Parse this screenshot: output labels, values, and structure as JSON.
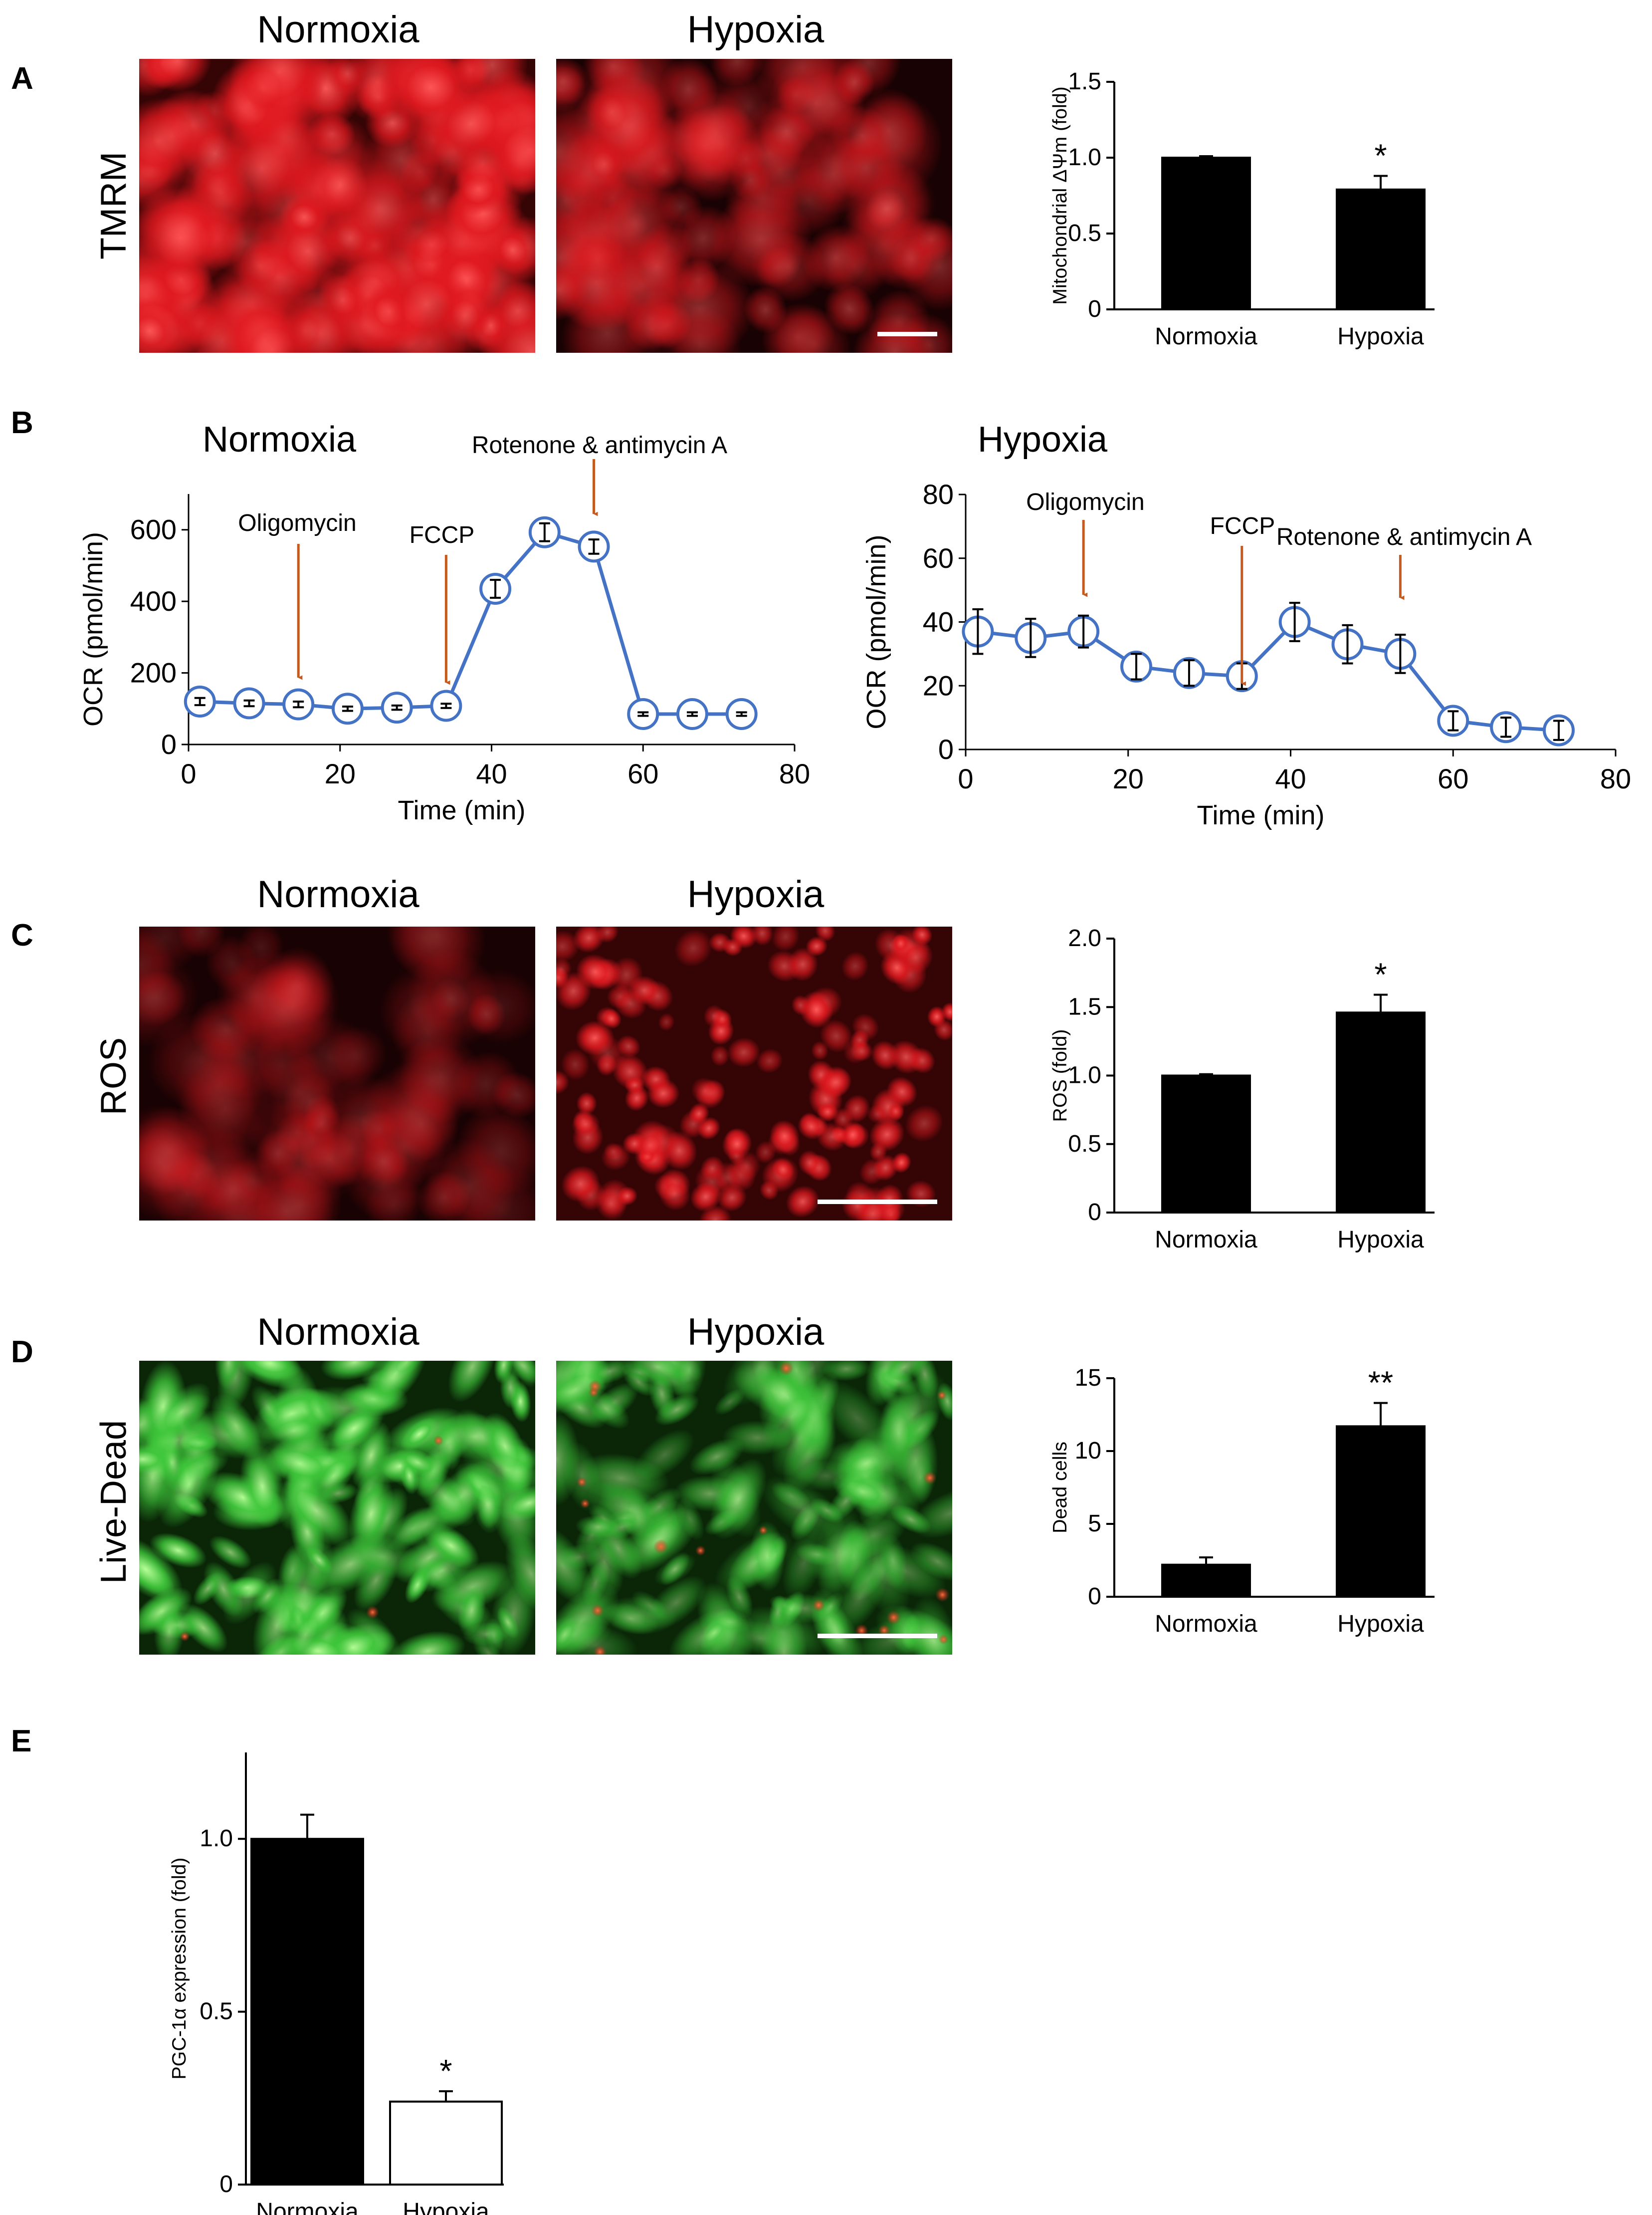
{
  "panels": {
    "A": {
      "label": "A",
      "row_label": "TMRM",
      "col_left": "Normoxia",
      "col_right": "Hypoxia"
    },
    "B": {
      "label": "B"
    },
    "C": {
      "label": "C",
      "row_label": "ROS",
      "col_left": "Normoxia",
      "col_right": "Hypoxia"
    },
    "D": {
      "label": "D",
      "row_label": "Live-Dead",
      "col_left": "Normoxia",
      "col_right": "Hypoxia"
    },
    "E": {
      "label": "E"
    }
  },
  "micrographs": {
    "A_normoxia": {
      "stain": "red",
      "intensity": 0.85
    },
    "A_hypoxia": {
      "stain": "red",
      "intensity": 0.45
    },
    "C_normoxia": {
      "stain": "red",
      "intensity": 0.25
    },
    "C_hypoxia": {
      "stain": "red",
      "intensity": 0.9
    },
    "D_normoxia": {
      "stain": "green",
      "intensity": 0.9
    },
    "D_hypoxia": {
      "stain": "green",
      "intensity": 0.6
    }
  },
  "colors": {
    "line": "#4472c4",
    "arrow": "#c55a1f",
    "bar_black": "#000000",
    "red_stain": "#e0191f",
    "green_stain": "#3ec63a",
    "dead_cell": "#d1201a"
  },
  "chart_data": [
    {
      "id": "A_bar",
      "type": "bar",
      "categories": [
        "Normoxia",
        "Hypoxia"
      ],
      "values": [
        1.0,
        0.79
      ],
      "errors": [
        0.01,
        0.09
      ],
      "significance": [
        "",
        "*"
      ],
      "bar_fill": [
        "#000000",
        "#000000"
      ],
      "ylabel": "Mitochondrial ΔΨm (fold)",
      "ylim": [
        0,
        1.5
      ],
      "yticks": [
        0,
        0.5,
        1.0,
        1.5
      ],
      "ytick_labels": [
        "0",
        "0.5",
        "1.0",
        "1.5"
      ]
    },
    {
      "id": "B_normoxia",
      "type": "line",
      "title": "Normoxia",
      "xlabel": "Time (min)",
      "ylabel": "OCR (pmol/min)",
      "xlim": [
        0,
        80
      ],
      "ylim": [
        0,
        700
      ],
      "xticks": [
        0,
        20,
        40,
        60,
        80
      ],
      "yticks": [
        0,
        200,
        400,
        600
      ],
      "x": [
        1.5,
        8,
        14.5,
        21,
        27.5,
        34,
        40.5,
        47,
        53.5,
        60,
        66.5,
        73
      ],
      "y": [
        120,
        115,
        112,
        100,
        103,
        108,
        435,
        593,
        553,
        85,
        85,
        85
      ],
      "err": [
        10,
        8,
        8,
        6,
        6,
        6,
        25,
        25,
        20,
        5,
        5,
        5
      ],
      "annotations": [
        {
          "text": "Oligomycin",
          "x": 14.5
        },
        {
          "text": "FCCP",
          "x": 34
        },
        {
          "text": "Rotenone & antimycin A",
          "x": 53.5
        }
      ]
    },
    {
      "id": "B_hypoxia",
      "type": "line",
      "title": "Hypoxia",
      "xlabel": "Time (min)",
      "ylabel": "OCR (pmol/min)",
      "xlim": [
        0,
        80
      ],
      "ylim": [
        0,
        80
      ],
      "xticks": [
        0,
        20,
        40,
        60,
        80
      ],
      "yticks": [
        0,
        20,
        40,
        60,
        80
      ],
      "x": [
        1.5,
        8,
        14.5,
        21,
        27.5,
        34,
        40.5,
        47,
        53.5,
        60,
        66.5,
        73
      ],
      "y": [
        37,
        35,
        37,
        26,
        24,
        23,
        40,
        33,
        30,
        9,
        7,
        6
      ],
      "err": [
        7,
        6,
        5,
        4,
        4,
        4,
        6,
        6,
        6,
        3,
        3,
        3
      ],
      "annotations": [
        {
          "text": "Oligomycin",
          "x": 14.5
        },
        {
          "text": "FCCP",
          "x": 34
        },
        {
          "text": "Rotenone & antimycin A",
          "x": 53.5
        }
      ]
    },
    {
      "id": "C_bar",
      "type": "bar",
      "categories": [
        "Normoxia",
        "Hypoxia"
      ],
      "values": [
        1.0,
        1.46
      ],
      "errors": [
        0.01,
        0.13
      ],
      "significance": [
        "",
        "*"
      ],
      "bar_fill": [
        "#000000",
        "#000000"
      ],
      "ylabel": "ROS (fold)",
      "ylim": [
        0,
        2.0
      ],
      "yticks": [
        0,
        0.5,
        1.0,
        1.5,
        2.0
      ],
      "ytick_labels": [
        "0",
        "0.5",
        "1.0",
        "1.5",
        "2.0"
      ]
    },
    {
      "id": "D_bar",
      "type": "bar",
      "categories": [
        "Normoxia",
        "Hypoxia"
      ],
      "values": [
        2.2,
        11.7
      ],
      "errors": [
        0.5,
        1.6
      ],
      "significance": [
        "",
        "**"
      ],
      "bar_fill": [
        "#000000",
        "#000000"
      ],
      "ylabel": "Dead cells",
      "ylim": [
        0,
        15
      ],
      "yticks": [
        0,
        5,
        10,
        15
      ],
      "ytick_labels": [
        "0",
        "5",
        "10",
        "15"
      ]
    },
    {
      "id": "E_bar",
      "type": "bar",
      "categories": [
        "Normoxia",
        "Hypoxia"
      ],
      "values": [
        1.0,
        0.24
      ],
      "errors": [
        0.07,
        0.03
      ],
      "significance": [
        "",
        "*"
      ],
      "bar_fill": [
        "#000000",
        "#ffffff"
      ],
      "ylabel": "PGC-1α expression (fold)",
      "ylim": [
        0,
        1.25
      ],
      "yticks": [
        0,
        0.5,
        1.0
      ],
      "ytick_labels": [
        "0",
        "0.5",
        "1.0"
      ]
    }
  ]
}
